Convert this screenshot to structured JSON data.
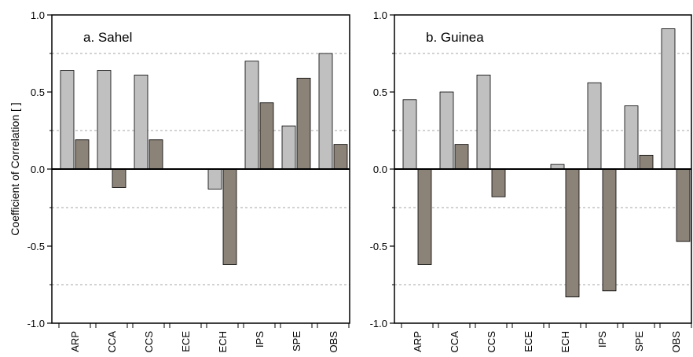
{
  "colors": {
    "light_bar": "#c0c0c0",
    "dark_bar": "#8b8278",
    "grid": "#a6a6a6",
    "axis": "#000000"
  },
  "ylabel": "Coefficient of Correlation [ ]",
  "chart_data": [
    {
      "type": "bar",
      "title": "a. Sahel",
      "categories": [
        "ARP",
        "CCA",
        "CCS",
        "ECE",
        "ECH",
        "IPS",
        "SPE",
        "OBS"
      ],
      "series": [
        {
          "values": [
            0.64,
            0.64,
            0.61,
            null,
            -0.13,
            0.7,
            0.28,
            0.75
          ]
        },
        {
          "values": [
            0.19,
            -0.12,
            0.19,
            null,
            -0.62,
            0.43,
            0.59,
            0.16
          ]
        }
      ],
      "ylabel": "Coefficient of Correlation [ ]",
      "ylim": [
        -1.0,
        1.0
      ],
      "yticks": [
        "1.0",
        "0.5",
        "0.0",
        "-0.5",
        "-1.0"
      ],
      "grid": "dashed horizontal lines every 0.25"
    },
    {
      "type": "bar",
      "title": "b. Guinea",
      "categories": [
        "ARP",
        "CCA",
        "CCS",
        "ECE",
        "ECH",
        "IPS",
        "SPE",
        "OBS"
      ],
      "series": [
        {
          "values": [
            0.45,
            0.5,
            0.61,
            null,
            0.03,
            0.56,
            0.41,
            0.91
          ]
        },
        {
          "values": [
            -0.62,
            0.16,
            -0.18,
            null,
            -0.83,
            -0.79,
            0.09,
            -0.47
          ]
        }
      ],
      "ylim": [
        -1.0,
        1.0
      ],
      "yticks": [
        "1.0",
        "0.5",
        "0.0",
        "-0.5",
        "-1.0"
      ],
      "grid": "dashed horizontal lines every 0.25"
    }
  ]
}
